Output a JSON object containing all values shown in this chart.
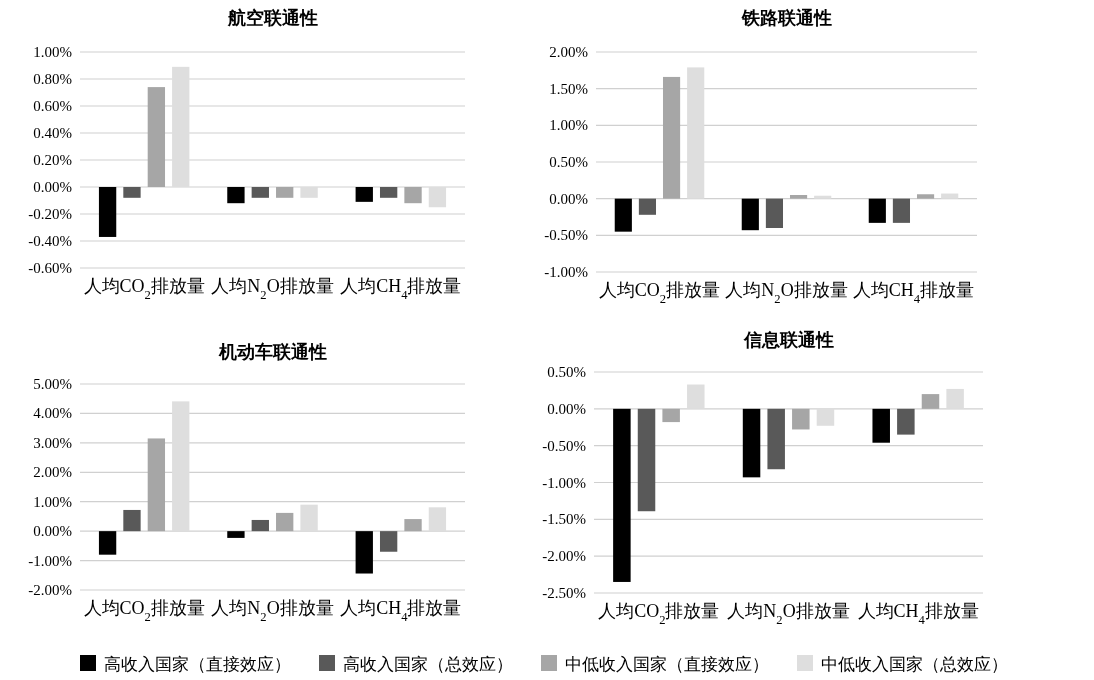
{
  "chart_data": [
    {
      "type": "bar",
      "title": "航空联通性",
      "categories": [
        "人均CO$_{2}$排放量",
        "人均N$_{2}$O排放量",
        "人均CH$_{4}$排放量"
      ],
      "ylim": [
        -0.6,
        1.0
      ],
      "yticks": [
        {
          "value": -0.6,
          "label": "-0.60%"
        },
        {
          "value": -0.4,
          "label": "-0.40%"
        },
        {
          "value": -0.2,
          "label": "-0.20%"
        },
        {
          "value": 0,
          "label": "0.00%"
        },
        {
          "value": 0.2,
          "label": "0.20%"
        },
        {
          "value": 0.4,
          "label": "0.40%"
        },
        {
          "value": 0.6,
          "label": "0.60%"
        },
        {
          "value": 0.8,
          "label": "0.80%"
        },
        {
          "value": 1.0,
          "label": "1.00%"
        }
      ],
      "grid": "y",
      "legend": "bottom",
      "series": [
        {
          "name": "高收入国家（直接效应）",
          "color": "#000000",
          "values": [
            -0.37,
            -0.12,
            -0.11
          ]
        },
        {
          "name": "高收入国家（总效应）",
          "color": "#595959",
          "values": [
            -0.08,
            -0.08,
            -0.08
          ]
        },
        {
          "name": "中低收入国家（直接效应）",
          "color": "#a6a6a6",
          "values": [
            0.74,
            -0.08,
            -0.12
          ]
        },
        {
          "name": "中低收入国家（总效应）",
          "color": "#dedede",
          "values": [
            0.89,
            -0.08,
            -0.15
          ]
        }
      ]
    },
    {
      "type": "bar",
      "title": "铁路联通性",
      "categories": [
        "人均CO$_{2}$排放量",
        "人均N$_{2}$O排放量",
        "人均CH$_{4}$排放量"
      ],
      "ylim": [
        -1.0,
        2.0
      ],
      "yticks": [
        {
          "value": -1.0,
          "label": "-1.00%"
        },
        {
          "value": -0.5,
          "label": "-0.50%"
        },
        {
          "value": 0,
          "label": "0.00%"
        },
        {
          "value": 0.5,
          "label": "0.50%"
        },
        {
          "value": 1.0,
          "label": "1.00%"
        },
        {
          "value": 1.5,
          "label": "1.50%"
        },
        {
          "value": 2.0,
          "label": "2.00%"
        }
      ],
      "grid": "y",
      "series": [
        {
          "color": "#000000",
          "values": [
            -0.45,
            -0.43,
            -0.33
          ]
        },
        {
          "color": "#595959",
          "values": [
            -0.22,
            -0.4,
            -0.33
          ]
        },
        {
          "color": "#a6a6a6",
          "values": [
            1.66,
            0.05,
            0.06
          ]
        },
        {
          "color": "#dedede",
          "values": [
            1.79,
            0.04,
            0.07
          ]
        }
      ]
    },
    {
      "type": "bar",
      "title": "机动车联通性",
      "categories": [
        "人均CO$_{2}$排放量",
        "人均N$_{2}$O排放量",
        "人均CH$_{4}$排放量"
      ],
      "ylim": [
        -2.0,
        5.0
      ],
      "yticks": [
        {
          "value": -2.0,
          "label": "-2.00%"
        },
        {
          "value": -1.0,
          "label": "-1.00%"
        },
        {
          "value": 0,
          "label": "0.00%"
        },
        {
          "value": 1.0,
          "label": "1.00%"
        },
        {
          "value": 2.0,
          "label": "2.00%"
        },
        {
          "value": 3.0,
          "label": "3.00%"
        },
        {
          "value": 4.0,
          "label": "4.00%"
        },
        {
          "value": 5.0,
          "label": "5.00%"
        }
      ],
      "grid": "y",
      "series": [
        {
          "color": "#000000",
          "values": [
            -0.8,
            -0.23,
            -1.44
          ]
        },
        {
          "color": "#595959",
          "values": [
            0.72,
            0.38,
            -0.7
          ]
        },
        {
          "color": "#a6a6a6",
          "values": [
            3.15,
            0.62,
            0.41
          ]
        },
        {
          "color": "#dedede",
          "values": [
            4.41,
            0.9,
            0.81
          ]
        }
      ]
    },
    {
      "type": "bar",
      "title": "信息联通性",
      "categories": [
        "人均CO$_{2}$排放量",
        "人均N$_{2}$O排放量",
        "人均CH$_{4}$排放量"
      ],
      "ylim": [
        -2.5,
        0.5
      ],
      "yticks": [
        {
          "value": -2.5,
          "label": "-2.50%"
        },
        {
          "value": -2.0,
          "label": "-2.00%"
        },
        {
          "value": -1.5,
          "label": "-1.50%"
        },
        {
          "value": -1.0,
          "label": "-1.00%"
        },
        {
          "value": -0.5,
          "label": "-0.50%"
        },
        {
          "value": 0,
          "label": "0.00%"
        },
        {
          "value": 0.5,
          "label": "0.50%"
        }
      ],
      "grid": "y",
      "series": [
        {
          "color": "#000000",
          "values": [
            -2.35,
            -0.93,
            -0.46
          ]
        },
        {
          "color": "#595959",
          "values": [
            -1.39,
            -0.82,
            -0.35
          ]
        },
        {
          "color": "#a6a6a6",
          "values": [
            -0.18,
            -0.28,
            0.2
          ]
        },
        {
          "color": "#dedede",
          "values": [
            0.33,
            -0.23,
            0.27
          ]
        }
      ]
    }
  ]
}
